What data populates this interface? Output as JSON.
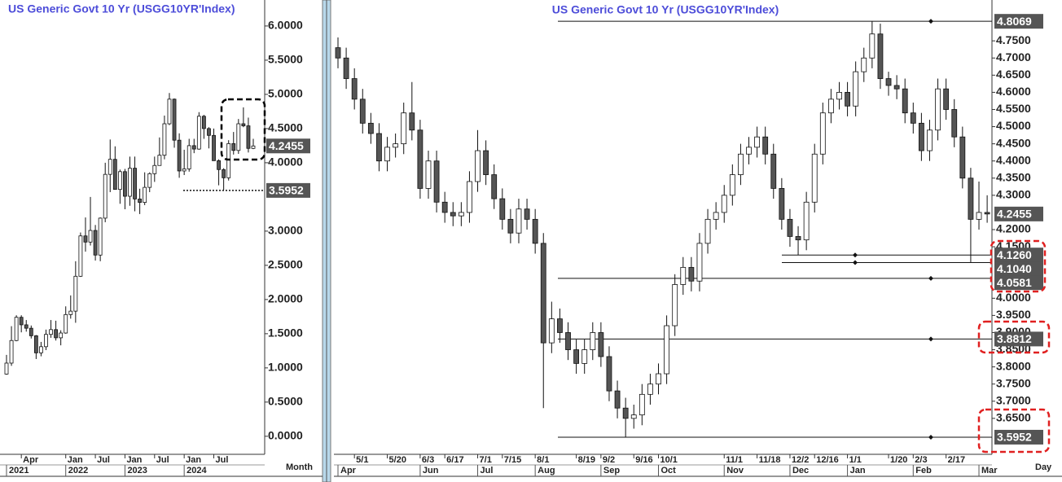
{
  "chart_data": [
    {
      "type": "candlestick",
      "title": "US Generic Govt 10 Yr (USGG10YR'Index)",
      "x_label": "Month",
      "up_color": "#ffffff",
      "down_color": "#555555",
      "grid": false,
      "categories": [
        null,
        null,
        null,
        "Apr",
        null,
        null,
        null,
        null,
        null,
        null,
        null,
        null,
        "Jan",
        null,
        null,
        null,
        null,
        null,
        "Jul",
        null,
        null,
        null,
        null,
        null,
        "Jan",
        null,
        null,
        null,
        null,
        null,
        "Jul",
        null,
        null,
        null,
        null,
        null,
        "Jan",
        null,
        null,
        null,
        null,
        null,
        "Jul",
        null,
        null,
        null,
        null,
        null,
        null,
        null,
        null
      ],
      "year_categories": [
        "2021",
        null,
        null,
        null,
        null,
        null,
        null,
        null,
        null,
        null,
        null,
        null,
        "2022",
        null,
        null,
        null,
        null,
        null,
        null,
        null,
        null,
        null,
        null,
        null,
        "2023",
        null,
        null,
        null,
        null,
        null,
        null,
        null,
        null,
        null,
        null,
        null,
        "2024",
        null,
        null,
        null,
        null,
        null,
        null,
        null,
        null,
        null,
        null,
        null,
        null,
        null,
        null
      ],
      "ohlc": [
        [
          0.91,
          1.19,
          0.9,
          1.07
        ],
        [
          1.07,
          1.61,
          1.03,
          1.4
        ],
        [
          1.4,
          1.77,
          1.39,
          1.74
        ],
        [
          1.74,
          1.77,
          1.52,
          1.63
        ],
        [
          1.63,
          1.7,
          1.53,
          1.58
        ],
        [
          1.58,
          1.62,
          1.43,
          1.47
        ],
        [
          1.47,
          1.48,
          1.13,
          1.22
        ],
        [
          1.22,
          1.38,
          1.17,
          1.31
        ],
        [
          1.31,
          1.56,
          1.26,
          1.49
        ],
        [
          1.49,
          1.7,
          1.44,
          1.56
        ],
        [
          1.56,
          1.69,
          1.4,
          1.44
        ],
        [
          1.44,
          1.55,
          1.33,
          1.51
        ],
        [
          1.51,
          1.9,
          1.5,
          1.78
        ],
        [
          1.78,
          2.06,
          1.72,
          1.83
        ],
        [
          1.83,
          2.56,
          1.66,
          2.34
        ],
        [
          2.34,
          2.98,
          2.33,
          2.93
        ],
        [
          2.93,
          3.2,
          2.7,
          2.84
        ],
        [
          2.84,
          3.5,
          2.79,
          3.01
        ],
        [
          3.01,
          3.09,
          2.57,
          2.65
        ],
        [
          2.65,
          3.2,
          2.56,
          3.19
        ],
        [
          3.19,
          4.0,
          3.13,
          3.83
        ],
        [
          3.83,
          4.34,
          3.57,
          4.05
        ],
        [
          4.05,
          4.24,
          3.61,
          3.61
        ],
        [
          3.61,
          3.9,
          3.4,
          3.87
        ],
        [
          3.87,
          3.91,
          3.32,
          3.51
        ],
        [
          3.51,
          4.09,
          3.37,
          3.92
        ],
        [
          3.92,
          4.09,
          3.29,
          3.47
        ],
        [
          3.47,
          3.62,
          3.25,
          3.42
        ],
        [
          3.42,
          3.86,
          3.38,
          3.64
        ],
        [
          3.64,
          3.86,
          3.57,
          3.84
        ],
        [
          3.84,
          4.09,
          3.72,
          3.96
        ],
        [
          3.96,
          4.37,
          3.96,
          4.11
        ],
        [
          4.11,
          4.69,
          4.05,
          4.57
        ],
        [
          4.57,
          5.02,
          4.55,
          4.93
        ],
        [
          4.93,
          4.94,
          4.22,
          4.33
        ],
        [
          4.33,
          4.43,
          3.78,
          3.88
        ],
        [
          3.88,
          4.19,
          3.82,
          3.91
        ],
        [
          3.91,
          4.35,
          3.87,
          4.25
        ],
        [
          4.25,
          4.35,
          4.14,
          4.2
        ],
        [
          4.2,
          4.74,
          4.19,
          4.68
        ],
        [
          4.68,
          4.7,
          4.35,
          4.5
        ],
        [
          4.5,
          4.52,
          4.21,
          4.4
        ],
        [
          4.4,
          4.5,
          4.03,
          4.03
        ],
        [
          4.03,
          4.05,
          3.67,
          3.9
        ],
        [
          3.9,
          3.92,
          3.6,
          3.78
        ],
        [
          3.78,
          4.33,
          3.74,
          4.28
        ],
        [
          4.28,
          4.45,
          4.12,
          4.18
        ],
        [
          4.18,
          4.64,
          4.13,
          4.57
        ],
        [
          4.57,
          4.81,
          4.52,
          4.54
        ],
        [
          4.54,
          4.66,
          4.15,
          4.21
        ],
        [
          4.21,
          4.35,
          4.2,
          4.2455
        ]
      ],
      "ylim": [
        -0.24,
        6.38
      ],
      "yticks": [
        {
          "value": 0,
          "label": "0.0000"
        },
        {
          "value": 0.5,
          "label": "0.5000"
        },
        {
          "value": 1,
          "label": "1.0000"
        },
        {
          "value": 1.5,
          "label": "1.5000"
        },
        {
          "value": 2,
          "label": "2.0000"
        },
        {
          "value": 2.5,
          "label": "2.5000"
        },
        {
          "value": 3,
          "label": "3.0000"
        },
        {
          "value": 4,
          "label": "4.0000"
        },
        {
          "value": 4.5,
          "label": "4.5000"
        },
        {
          "value": 5,
          "label": "5.0000"
        },
        {
          "value": 5.5,
          "label": "5.5000"
        },
        {
          "value": 6,
          "label": "6.0000"
        }
      ],
      "levels": {
        "values": [
          3.5952
        ],
        "value_labels": [
          "3.5952"
        ]
      }
    },
    {
      "type": "candlestick",
      "title": "US Generic Govt 10 Yr (USGG10YR'Index)",
      "x_label": "Day",
      "up_color": "#ffffff",
      "down_color": "#555555",
      "grid": false,
      "categories": [
        null,
        null,
        "5/1",
        null,
        null,
        null,
        "5/20",
        null,
        null,
        null,
        "6/3",
        null,
        null,
        "6/17",
        null,
        null,
        null,
        "7/1",
        null,
        null,
        "7/15",
        null,
        null,
        null,
        "8/1",
        null,
        null,
        null,
        null,
        "8/19",
        null,
        null,
        "9/2",
        null,
        null,
        null,
        "9/16",
        null,
        null,
        "10/1",
        null,
        null,
        null,
        null,
        null,
        null,
        null,
        "11/1",
        null,
        null,
        null,
        "11/18",
        null,
        null,
        null,
        "12/2",
        null,
        null,
        "12/16",
        null,
        null,
        null,
        "1/1",
        null,
        null,
        null,
        null,
        "1/20",
        null,
        null,
        "2/3",
        null,
        null,
        null,
        "2/17",
        null,
        null,
        null,
        null,
        null
      ],
      "month_categories": [
        "Apr",
        null,
        null,
        null,
        null,
        null,
        null,
        null,
        null,
        null,
        "Jun",
        null,
        null,
        null,
        null,
        null,
        null,
        "Jul",
        null,
        null,
        null,
        null,
        null,
        null,
        "Aug",
        null,
        null,
        null,
        null,
        null,
        null,
        null,
        "Sep",
        null,
        null,
        null,
        null,
        null,
        null,
        "Oct",
        null,
        null,
        null,
        null,
        null,
        null,
        null,
        "Nov",
        null,
        null,
        null,
        null,
        null,
        null,
        null,
        "Dec",
        null,
        null,
        null,
        null,
        null,
        null,
        "Jan",
        null,
        null,
        null,
        null,
        null,
        null,
        null,
        "Feb",
        null,
        null,
        null,
        null,
        null,
        null,
        null,
        "Mar",
        null
      ],
      "ohlc": [
        [
          4.73,
          4.76,
          4.67,
          4.7
        ],
        [
          4.7,
          4.73,
          4.61,
          4.64
        ],
        [
          4.64,
          4.67,
          4.55,
          4.58
        ],
        [
          4.58,
          4.61,
          4.48,
          4.51
        ],
        [
          4.51,
          4.54,
          4.45,
          4.48
        ],
        [
          4.48,
          4.51,
          4.37,
          4.4
        ],
        [
          4.4,
          4.47,
          4.37,
          4.44
        ],
        [
          4.44,
          4.48,
          4.41,
          4.45
        ],
        [
          4.45,
          4.57,
          4.42,
          4.54
        ],
        [
          4.54,
          4.63,
          4.46,
          4.49
        ],
        [
          4.49,
          4.52,
          4.29,
          4.32
        ],
        [
          4.32,
          4.43,
          4.29,
          4.4
        ],
        [
          4.4,
          4.43,
          4.25,
          4.28
        ],
        [
          4.28,
          4.31,
          4.22,
          4.25
        ],
        [
          4.25,
          4.28,
          4.21,
          4.24
        ],
        [
          4.24,
          4.28,
          4.21,
          4.25
        ],
        [
          4.25,
          4.37,
          4.22,
          4.34
        ],
        [
          4.34,
          4.49,
          4.31,
          4.43
        ],
        [
          4.43,
          4.46,
          4.33,
          4.36
        ],
        [
          4.36,
          4.39,
          4.26,
          4.29
        ],
        [
          4.29,
          4.32,
          4.2,
          4.23
        ],
        [
          4.23,
          4.26,
          4.16,
          4.19
        ],
        [
          4.19,
          4.29,
          4.16,
          4.26
        ],
        [
          4.26,
          4.29,
          4.2,
          4.23
        ],
        [
          4.23,
          4.26,
          4.13,
          4.16
        ],
        [
          4.16,
          4.19,
          3.68,
          3.87
        ],
        [
          3.87,
          3.99,
          3.84,
          3.94
        ],
        [
          3.94,
          3.97,
          3.87,
          3.9
        ],
        [
          3.9,
          3.93,
          3.82,
          3.85
        ],
        [
          3.85,
          3.88,
          3.78,
          3.81
        ],
        [
          3.81,
          3.88,
          3.78,
          3.85
        ],
        [
          3.85,
          3.93,
          3.82,
          3.9
        ],
        [
          3.9,
          3.93,
          3.8,
          3.83
        ],
        [
          3.83,
          3.86,
          3.7,
          3.73
        ],
        [
          3.73,
          3.76,
          3.65,
          3.68
        ],
        [
          3.68,
          3.71,
          3.5952,
          3.65
        ],
        [
          3.65,
          3.69,
          3.62,
          3.66
        ],
        [
          3.66,
          3.75,
          3.63,
          3.72
        ],
        [
          3.72,
          3.78,
          3.69,
          3.75
        ],
        [
          3.75,
          3.81,
          3.72,
          3.78
        ],
        [
          3.78,
          3.95,
          3.75,
          3.92
        ],
        [
          3.92,
          4.07,
          3.89,
          4.04
        ],
        [
          4.04,
          4.12,
          4.01,
          4.09
        ],
        [
          4.09,
          4.12,
          4.02,
          4.05
        ],
        [
          4.05,
          4.19,
          4.02,
          4.16
        ],
        [
          4.16,
          4.26,
          4.13,
          4.23
        ],
        [
          4.23,
          4.28,
          4.2,
          4.25
        ],
        [
          4.25,
          4.33,
          4.22,
          4.3
        ],
        [
          4.3,
          4.39,
          4.27,
          4.36
        ],
        [
          4.36,
          4.45,
          4.33,
          4.42
        ],
        [
          4.42,
          4.47,
          4.39,
          4.44
        ],
        [
          4.44,
          4.5,
          4.41,
          4.47
        ],
        [
          4.47,
          4.5,
          4.39,
          4.42
        ],
        [
          4.42,
          4.45,
          4.29,
          4.32
        ],
        [
          4.32,
          4.35,
          4.2,
          4.23
        ],
        [
          4.23,
          4.26,
          4.15,
          4.18
        ],
        [
          4.18,
          4.21,
          4.126,
          4.17
        ],
        [
          4.17,
          4.31,
          4.14,
          4.28
        ],
        [
          4.28,
          4.45,
          4.25,
          4.42
        ],
        [
          4.42,
          4.57,
          4.39,
          4.54
        ],
        [
          4.54,
          4.61,
          4.51,
          4.58
        ],
        [
          4.58,
          4.63,
          4.55,
          4.6
        ],
        [
          4.6,
          4.63,
          4.53,
          4.56
        ],
        [
          4.56,
          4.69,
          4.53,
          4.66
        ],
        [
          4.66,
          4.73,
          4.63,
          4.7
        ],
        [
          4.7,
          4.8069,
          4.67,
          4.77
        ],
        [
          4.77,
          4.8,
          4.61,
          4.64
        ],
        [
          4.64,
          4.66,
          4.59,
          4.62
        ],
        [
          4.62,
          4.65,
          4.58,
          4.61
        ],
        [
          4.61,
          4.64,
          4.51,
          4.54
        ],
        [
          4.54,
          4.57,
          4.48,
          4.51
        ],
        [
          4.51,
          4.54,
          4.4,
          4.43
        ],
        [
          4.43,
          4.52,
          4.4,
          4.49
        ],
        [
          4.49,
          4.64,
          4.46,
          4.61
        ],
        [
          4.61,
          4.64,
          4.52,
          4.55
        ],
        [
          4.55,
          4.58,
          4.44,
          4.47
        ],
        [
          4.47,
          4.5,
          4.32,
          4.35
        ],
        [
          4.35,
          4.38,
          4.104,
          4.23
        ],
        [
          4.23,
          4.34,
          4.2,
          4.25
        ],
        [
          4.25,
          4.3,
          4.22,
          4.2455
        ]
      ],
      "ylim": [
        3.55,
        4.869
      ],
      "yticks": [
        {
          "value": 3.65,
          "label": "3.6500"
        },
        {
          "value": 3.7,
          "label": "3.7000"
        },
        {
          "value": 3.75,
          "label": "3.7500"
        },
        {
          "value": 3.8,
          "label": "3.8000"
        },
        {
          "value": 3.85,
          "label": "3.8500"
        },
        {
          "value": 3.9,
          "label": "3.9000"
        },
        {
          "value": 3.95,
          "label": "3.9500"
        },
        {
          "value": 4,
          "label": "4.0000"
        },
        {
          "value": 4.15,
          "label": "4.1500"
        },
        {
          "value": 4.2,
          "label": "4.2000"
        },
        {
          "value": 4.3,
          "label": "4.3000"
        },
        {
          "value": 4.35,
          "label": "4.3500"
        },
        {
          "value": 4.4,
          "label": "4.4000"
        },
        {
          "value": 4.45,
          "label": "4.4500"
        },
        {
          "value": 4.5,
          "label": "4.5000"
        },
        {
          "value": 4.55,
          "label": "4.5500"
        },
        {
          "value": 4.6,
          "label": "4.6000"
        },
        {
          "value": 4.65,
          "label": "4.6500"
        },
        {
          "value": 4.7,
          "label": "4.7000"
        },
        {
          "value": 4.75,
          "label": "4.7500"
        }
      ],
      "levels": {
        "values": [
          4.8069,
          4.126,
          4.104,
          4.0581,
          3.8812,
          3.5952
        ],
        "value_labels": [
          "4.8069",
          "4.1260",
          "4.1040",
          "4.0581",
          "3.8812",
          "3.5952"
        ]
      }
    }
  ]
}
